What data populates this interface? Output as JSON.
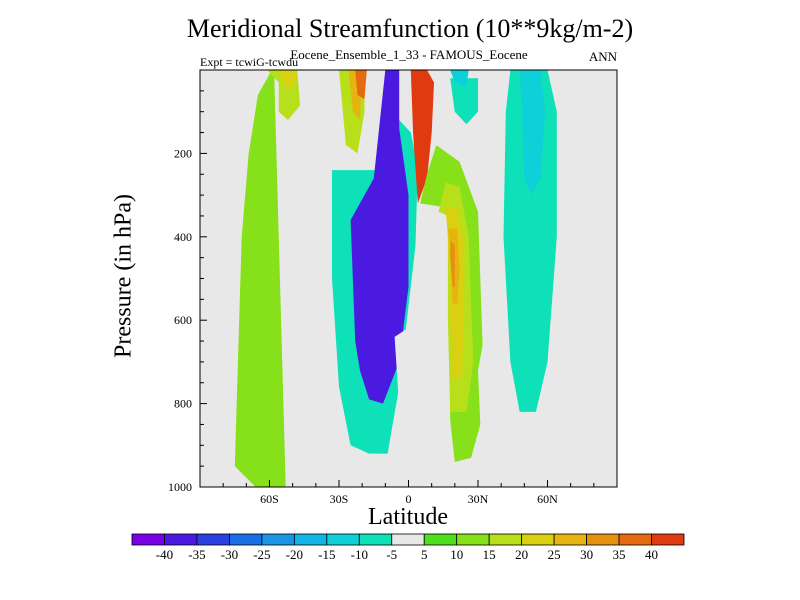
{
  "chart_data": {
    "type": "contour",
    "title": "Meridional Streamfunction (10**9kg/m-2)",
    "subtitle": "Eocene_Ensemble_1_33 - FAMOUS_Eocene",
    "left_note": "Expt = tcwiG-tcwdu",
    "right_note": "ANN",
    "xlabel": "Latitude",
    "ylabel": "Pressure (in hPa)",
    "xlim": [
      -90,
      90
    ],
    "ylim": [
      1000,
      0
    ],
    "x_ticks": [
      {
        "value": -60,
        "label": "60S"
      },
      {
        "value": -30,
        "label": "30S"
      },
      {
        "value": 0,
        "label": "0"
      },
      {
        "value": 30,
        "label": "30N"
      },
      {
        "value": 60,
        "label": "60N"
      }
    ],
    "y_ticks": [
      {
        "value": 200,
        "label": "200"
      },
      {
        "value": 400,
        "label": "400"
      },
      {
        "value": 600,
        "label": "600"
      },
      {
        "value": 800,
        "label": "800"
      },
      {
        "value": 1000,
        "label": "1000"
      }
    ],
    "colorbar": {
      "labels": [
        "-40",
        "-35",
        "-30",
        "-25",
        "-20",
        "-15",
        "-10",
        "-5",
        "5",
        "10",
        "15",
        "20",
        "25",
        "30",
        "35",
        "40"
      ],
      "colors": [
        "#7a00e6",
        "#4a1ae0",
        "#2a40e0",
        "#1a6ee6",
        "#1a95e6",
        "#10b4e6",
        "#0ed0d8",
        "#0ee0b8",
        "#e8e8e8",
        "#4ee01a",
        "#86e01a",
        "#b8e01a",
        "#d8d010",
        "#e6b410",
        "#e69010",
        "#e66a10",
        "#e03a10"
      ]
    },
    "regions": [
      {
        "level": 10,
        "points": [
          [
            -39,
            0
          ],
          [
            -58,
            0
          ],
          [
            -53,
            1000
          ],
          [
            -66,
            1000
          ],
          [
            -75,
            950
          ],
          [
            -72,
            400
          ],
          [
            -69,
            200
          ],
          [
            -65,
            60
          ],
          [
            -59,
            0
          ]
        ]
      },
      {
        "level": 15,
        "points": [
          [
            -52,
            0
          ],
          [
            -61,
            0
          ],
          [
            -56,
            30
          ],
          [
            -56,
            100
          ],
          [
            -52,
            120
          ],
          [
            -46,
            80
          ],
          [
            -44,
            20
          ],
          [
            -43,
            0
          ]
        ]
      },
      {
        "level": 20,
        "points": [
          [
            -52,
            0
          ],
          [
            -56,
            0
          ],
          [
            -53,
            40
          ],
          [
            -50,
            40
          ],
          [
            -47,
            10
          ]
        ]
      },
      {
        "level": -5,
        "points": [
          [
            -12,
            0
          ],
          [
            -32,
            0
          ],
          [
            -48,
            0
          ],
          [
            -44,
            300
          ],
          [
            -37,
            700
          ],
          [
            -30,
            860
          ],
          [
            -22,
            950
          ],
          [
            -9,
            960
          ],
          [
            -5,
            700
          ],
          [
            6,
            320
          ],
          [
            8,
            160
          ],
          [
            4,
            60
          ],
          [
            -3,
            0
          ]
        ]
      },
      {
        "level": -10,
        "points": [
          [
            -14,
            240
          ],
          [
            -33,
            240
          ],
          [
            -33,
            500
          ],
          [
            -30,
            760
          ],
          [
            -25,
            900
          ],
          [
            -17,
            920
          ],
          [
            -9,
            920
          ],
          [
            -4,
            760
          ],
          [
            3,
            420
          ],
          [
            4,
            230
          ],
          [
            1,
            150
          ],
          [
            -4,
            120
          ]
        ]
      },
      {
        "level": -40,
        "points": [
          [
            -15,
            260
          ],
          [
            -25,
            360
          ],
          [
            -23,
            650
          ],
          [
            -21,
            720
          ],
          [
            -17,
            790
          ],
          [
            -11,
            800
          ],
          [
            -4,
            700
          ],
          [
            0,
            520
          ],
          [
            0,
            300
          ],
          [
            -4,
            140
          ],
          [
            -4,
            0
          ],
          [
            -10,
            0
          ]
        ]
      },
      {
        "level": 40,
        "points": [
          [
            1,
            0
          ],
          [
            8,
            0
          ],
          [
            11,
            30
          ],
          [
            10,
            150
          ],
          [
            8,
            260
          ],
          [
            4,
            320
          ],
          [
            2,
            150
          ]
        ]
      },
      {
        "level": -5,
        "points": [
          [
            -6,
            640
          ],
          [
            5,
            600
          ],
          [
            11,
            740
          ],
          [
            4,
            840
          ],
          [
            -4,
            810
          ]
        ]
      },
      {
        "level": 10,
        "points": [
          [
            17,
            330
          ],
          [
            5,
            320
          ],
          [
            8,
            250
          ],
          [
            12,
            180
          ],
          [
            22,
            220
          ],
          [
            30,
            340
          ],
          [
            31,
            500
          ],
          [
            32,
            660
          ],
          [
            30,
            720
          ],
          [
            31,
            850
          ],
          [
            27,
            930
          ],
          [
            20,
            940
          ],
          [
            18,
            840
          ],
          [
            18,
            700
          ]
        ]
      },
      {
        "level": 15,
        "points": [
          [
            17,
            350
          ],
          [
            13,
            340
          ],
          [
            16,
            270
          ],
          [
            22,
            280
          ],
          [
            26,
            400
          ],
          [
            27,
            560
          ],
          [
            28,
            700
          ],
          [
            25,
            820
          ],
          [
            18,
            820
          ],
          [
            17,
            600
          ]
        ]
      },
      {
        "level": 20,
        "points": [
          [
            17,
            400
          ],
          [
            16,
            330
          ],
          [
            21,
            330
          ],
          [
            24,
            420
          ],
          [
            24,
            600
          ],
          [
            23,
            740
          ],
          [
            19,
            740
          ],
          [
            18,
            600
          ]
        ]
      },
      {
        "level": 25,
        "points": [
          [
            18,
            420
          ],
          [
            17,
            380
          ],
          [
            21,
            380
          ],
          [
            22,
            480
          ],
          [
            21,
            560
          ],
          [
            19,
            560
          ]
        ]
      },
      {
        "level": 30,
        "points": [
          [
            18,
            450
          ],
          [
            18,
            410
          ],
          [
            20,
            420
          ],
          [
            20,
            520
          ],
          [
            19,
            520
          ]
        ]
      },
      {
        "level": -5,
        "points": [
          [
            13,
            0
          ],
          [
            34,
            0
          ],
          [
            34,
            60
          ],
          [
            32,
            140
          ],
          [
            28,
            180
          ],
          [
            22,
            150
          ],
          [
            18,
            120
          ],
          [
            15,
            60
          ]
        ]
      },
      {
        "level": -10,
        "points": [
          [
            18,
            20
          ],
          [
            30,
            20
          ],
          [
            30,
            100
          ],
          [
            25,
            130
          ],
          [
            20,
            100
          ]
        ]
      },
      {
        "level": -15,
        "points": [
          [
            18,
            0
          ],
          [
            26,
            0
          ],
          [
            25,
            40
          ],
          [
            20,
            30
          ]
        ]
      },
      {
        "level": -5,
        "points": [
          [
            42,
            0
          ],
          [
            62,
            0
          ],
          [
            68,
            100
          ],
          [
            69,
            400
          ],
          [
            66,
            700
          ],
          [
            60,
            920
          ],
          [
            49,
            930
          ],
          [
            40,
            700
          ],
          [
            38,
            400
          ],
          [
            39,
            100
          ]
        ]
      },
      {
        "level": -10,
        "points": [
          [
            44,
            0
          ],
          [
            60,
            0
          ],
          [
            64,
            100
          ],
          [
            64,
            400
          ],
          [
            60,
            700
          ],
          [
            55,
            820
          ],
          [
            48,
            820
          ],
          [
            44,
            700
          ],
          [
            41,
            400
          ],
          [
            42,
            100
          ]
        ]
      },
      {
        "level": -15,
        "points": [
          [
            48,
            0
          ],
          [
            57,
            0
          ],
          [
            59,
            100
          ],
          [
            57,
            260
          ],
          [
            53,
            300
          ],
          [
            50,
            260
          ],
          [
            49,
            100
          ]
        ]
      },
      {
        "level": 15,
        "points": [
          [
            -22,
            0
          ],
          [
            -30,
            0
          ],
          [
            -27,
            180
          ],
          [
            -22,
            200
          ],
          [
            -19,
            100
          ],
          [
            -19,
            0
          ]
        ]
      },
      {
        "level": 25,
        "points": [
          [
            -20,
            0
          ],
          [
            -26,
            0
          ],
          [
            -24,
            100
          ],
          [
            -21,
            120
          ]
        ]
      },
      {
        "level": 35,
        "points": [
          [
            -18,
            0
          ],
          [
            -23,
            0
          ],
          [
            -22,
            60
          ],
          [
            -19,
            70
          ]
        ]
      }
    ]
  }
}
